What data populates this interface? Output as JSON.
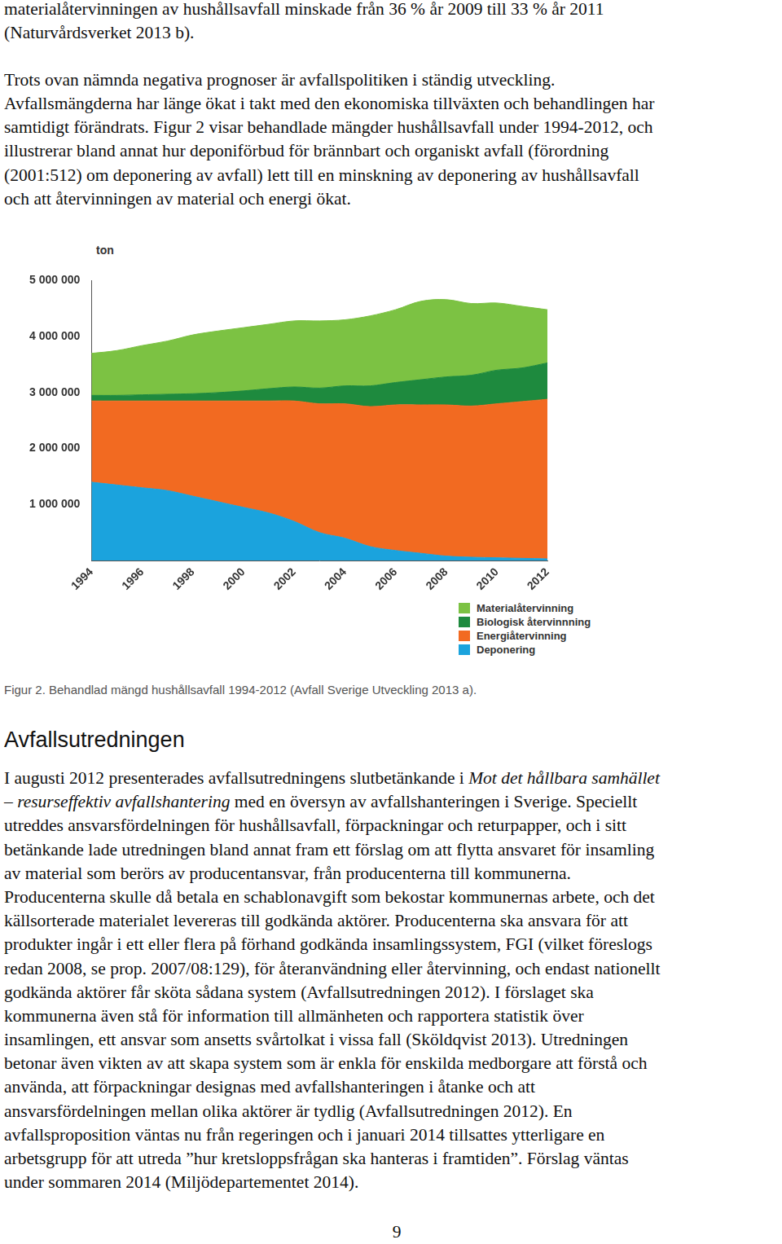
{
  "intro": {
    "paragraphs": [
      [
        "materialåtervinningen av hushållsavfall minskade från 36 % år 2009 till 33 % år 2011",
        "(Naturvårdsverket 2013 b)."
      ],
      [
        "Trots ovan nämnda negativa prognoser är avfallspolitiken i ständig utveckling.",
        "Avfallsmängderna har länge ökat i takt med den ekonomiska tillväxten och behandlingen har",
        "samtidigt förändrats. Figur 2 visar behandlade mängder hushållsavfall under 1994-2012, och",
        "illustrerar bland annat hur deponiförbud för brännbart och organiskt avfall (förordning",
        "(2001:512) om deponering av avfall) lett till en minskning av deponering av hushållsavfall",
        "och att återvinningen av material och energi ökat."
      ]
    ]
  },
  "chart_data": {
    "type": "area",
    "stacked": true,
    "ylabel": "ton",
    "categories": [
      1994,
      null,
      1996,
      null,
      1998,
      null,
      2000,
      null,
      2002,
      null,
      2004,
      null,
      2006,
      null,
      2008,
      null,
      2010,
      null,
      2012
    ],
    "series": [
      {
        "name": "Deponering",
        "color": "#1ba3dd",
        "values": [
          1400000,
          1350000,
          1300000,
          1250000,
          1150000,
          1050000,
          950000,
          850000,
          700000,
          500000,
          400000,
          250000,
          180000,
          130000,
          80000,
          60000,
          50000,
          40000,
          30000
        ]
      },
      {
        "name": "Energiåtervinning",
        "color": "#f26a21",
        "values": [
          1450000,
          1500000,
          1550000,
          1600000,
          1700000,
          1800000,
          1900000,
          2000000,
          2150000,
          2300000,
          2400000,
          2500000,
          2600000,
          2650000,
          2700000,
          2700000,
          2750000,
          2800000,
          2850000
        ]
      },
      {
        "name": "Biologisk återvinnning",
        "color": "#1e8a3e",
        "values": [
          100000,
          100000,
          110000,
          120000,
          130000,
          150000,
          180000,
          220000,
          250000,
          280000,
          320000,
          370000,
          400000,
          450000,
          500000,
          550000,
          600000,
          600000,
          650000
        ]
      },
      {
        "name": "Materialåtervinning",
        "color": "#7cc243",
        "values": [
          750000,
          800000,
          880000,
          950000,
          1050000,
          1100000,
          1130000,
          1150000,
          1180000,
          1200000,
          1180000,
          1250000,
          1300000,
          1400000,
          1380000,
          1280000,
          1200000,
          1100000,
          950000
        ]
      }
    ],
    "ylim": [
      0,
      5000000
    ],
    "yticks": [
      {
        "value": 1000000,
        "label": "1 000 000"
      },
      {
        "value": 2000000,
        "label": "2 000 000"
      },
      {
        "value": 3000000,
        "label": "3 000 000"
      },
      {
        "value": 4000000,
        "label": "4 000 000"
      },
      {
        "value": 5000000,
        "label": "5 000 000"
      }
    ],
    "grid": false,
    "legend": "lower right"
  },
  "caption": "Figur 2. Behandlad mängd hushållsavfall 1994-2012 (Avfall Sverige Utveckling 2013 a).",
  "heading": "Avfallsutredningen",
  "body": {
    "paragraphs": [
      [
        [
          "I augusti 2012 presenterades avfallsutredningens slutbetänkande i ",
          {
            "italic": "Mot det hållbara samhället"
          }
        ],
        [
          {
            "italic": "– resurseffektiv avfallshantering"
          },
          " med en översyn av avfallshanteringen i Sverige. Speciellt"
        ],
        "utreddes ansvarsfördelningen för hushållsavfall, förpackningar och returpapper, och i sitt",
        "betänkande lade utredningen bland annat fram ett förslag om att flytta ansvaret för insamling",
        "av material som berörs av producentansvar, från producenterna till kommunerna.",
        "Producenterna skulle då betala en schablonavgift som bekostar kommunernas arbete, och det",
        "källsorterade materialet levereras till godkända aktörer. Producenterna ska ansvara för att",
        "produkter ingår i ett eller flera på förhand godkända insamlingssystem, FGI (vilket föreslogs",
        "redan 2008, se prop. 2007/08:129), för återanvändning eller återvinning, och endast nationellt",
        "godkända aktörer får sköta sådana system (Avfallsutredningen 2012). I förslaget ska",
        "kommunerna även stå för information till allmänheten och rapportera statistik över",
        "insamlingen, ett ansvar som ansetts svårtolkat i vissa fall (Sköldqvist 2013). Utredningen",
        "betonar även vikten av att skapa system som är enkla för enskilda medborgare att förstå och",
        "använda, att förpackningar designas med avfallshanteringen i åtanke och att",
        "ansvarsfördelningen mellan olika aktörer är tydlig (Avfallsutredningen 2012). En",
        "avfallsproposition väntas nu från regeringen och i januari 2014 tillsattes ytterligare en",
        "arbetsgrupp för att utreda ”hur kretsloppsfrågan ska hanteras i framtiden”. Förslag väntas",
        "under sommaren 2014 (Miljödepartementet 2014)."
      ]
    ]
  },
  "page_number": "9"
}
